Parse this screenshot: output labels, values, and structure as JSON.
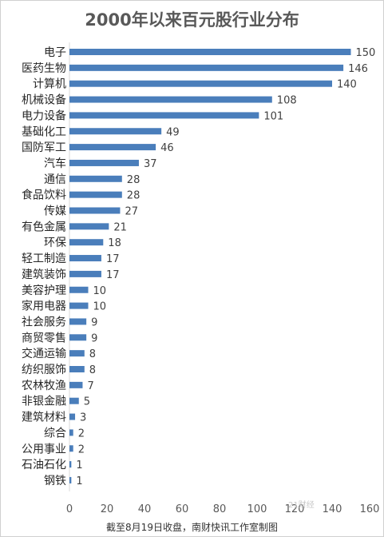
{
  "chart_data": {
    "type": "bar",
    "orientation": "horizontal",
    "title": "2000年以来百元股行业分布",
    "categories": [
      "电子",
      "医药生物",
      "计算机",
      "机械设备",
      "电力设备",
      "基础化工",
      "国防军工",
      "汽车",
      "通信",
      "食品饮料",
      "传媒",
      "有色金属",
      "环保",
      "轻工制造",
      "建筑装饰",
      "美容护理",
      "家用电器",
      "社会服务",
      "商贸零售",
      "交通运输",
      "纺织服饰",
      "农林牧渔",
      "非银金融",
      "建筑材料",
      "综合",
      "公用事业",
      "石油石化",
      "钢铁"
    ],
    "values": [
      150,
      146,
      140,
      108,
      101,
      49,
      46,
      37,
      28,
      28,
      27,
      21,
      18,
      17,
      17,
      10,
      10,
      9,
      9,
      8,
      8,
      7,
      5,
      3,
      2,
      2,
      1,
      1
    ],
    "xlim": [
      0,
      160
    ],
    "xticks": [
      0,
      20,
      40,
      60,
      80,
      100,
      120,
      140,
      160
    ],
    "bar_color": "#4a7ebb",
    "grid": false,
    "legend": "none"
  },
  "footer": "截至8月19日收盘，南财快讯工作室制图",
  "watermark": "21财经"
}
